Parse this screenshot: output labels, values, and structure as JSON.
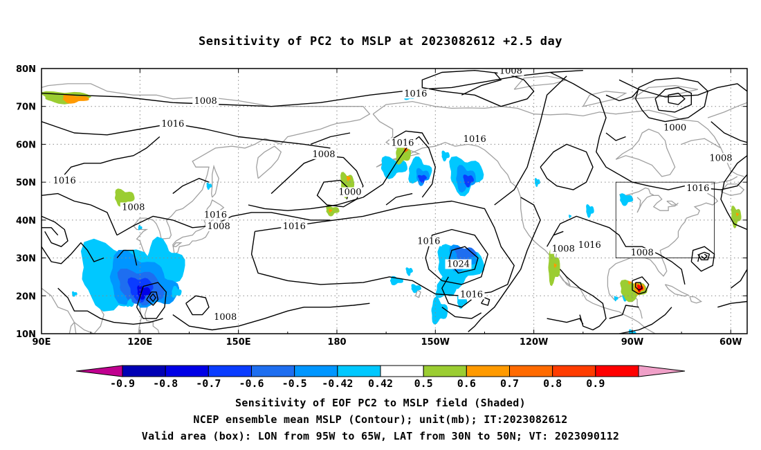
{
  "chart_data": {
    "type": "heatmap",
    "title": "Sensitivity of PC2 to MSLP at 2023082612 +2.5 day",
    "x_ticks": [
      "90E",
      "120E",
      "150E",
      "180",
      "150W",
      "120W",
      "90W",
      "60W"
    ],
    "y_ticks": [
      "10N",
      "20N",
      "30N",
      "40N",
      "50N",
      "60N",
      "70N",
      "80N"
    ],
    "lon_range": [
      90,
      305
    ],
    "lat_range": [
      10,
      80
    ],
    "grid": "dotted",
    "colorbar": {
      "levels": [
        "-0.9",
        "-0.8",
        "-0.7",
        "-0.6",
        "-0.5",
        "-0.42",
        "0.42",
        "0.5",
        "0.6",
        "0.7",
        "0.8",
        "0.9"
      ],
      "colors": [
        "#c0008f",
        "#0000b4",
        "#0000e6",
        "#0a3cff",
        "#1e6ef0",
        "#0096ff",
        "#00c8ff",
        "#ffffff",
        "#9bcd32",
        "#ff9a00",
        "#ff6a00",
        "#ff3c00",
        "#ff0000",
        "#f0a0c8"
      ]
    },
    "contour_labels": [
      {
        "text": "1008",
        "lon": 140,
        "lat": 71
      },
      {
        "text": "1016",
        "lon": 130,
        "lat": 65
      },
      {
        "text": "1016",
        "lon": 97,
        "lat": 50
      },
      {
        "text": "1008",
        "lon": 118,
        "lat": 43
      },
      {
        "text": "1016",
        "lon": 143,
        "lat": 41
      },
      {
        "text": "1008",
        "lon": 144,
        "lat": 38
      },
      {
        "text": "1016",
        "lon": 167,
        "lat": 38
      },
      {
        "text": "1008",
        "lon": 176,
        "lat": 57
      },
      {
        "text": "1000",
        "lon": 184,
        "lat": 47
      },
      {
        "text": "1016",
        "lon": 200,
        "lat": 60
      },
      {
        "text": "1016",
        "lon": 204,
        "lat": 73
      },
      {
        "text": "1008",
        "lon": 233,
        "lat": 79
      },
      {
        "text": "1016",
        "lon": 222,
        "lat": 61
      },
      {
        "text": "1016",
        "lon": 208,
        "lat": 34
      },
      {
        "text": "1024",
        "lon": 217,
        "lat": 28
      },
      {
        "text": "1016",
        "lon": 221,
        "lat": 20
      },
      {
        "text": "1008",
        "lon": 146,
        "lat": 14
      },
      {
        "text": "1008",
        "lon": 249,
        "lat": 32
      },
      {
        "text": "1016",
        "lon": 257,
        "lat": 33
      },
      {
        "text": "1008",
        "lon": 273,
        "lat": 31
      },
      {
        "text": "1000",
        "lon": 283,
        "lat": 64
      },
      {
        "text": "1008",
        "lon": 297,
        "lat": 56
      },
      {
        "text": "1016",
        "lon": 290,
        "lat": 48
      }
    ],
    "valid_box": {
      "lon": [
        265,
        295
      ],
      "lat": [
        30,
        50
      ]
    },
    "unit": "mb"
  },
  "footer": {
    "line1": "Sensitivity of EOF PC2 to MSLP field (Shaded)",
    "line2": "NCEP ensemble mean MSLP (Contour); unit(mb); IT:2023082612",
    "line3": "Valid area (box): LON from 95W to 65W, LAT from 30N to 50N; VT: 2023090112"
  }
}
